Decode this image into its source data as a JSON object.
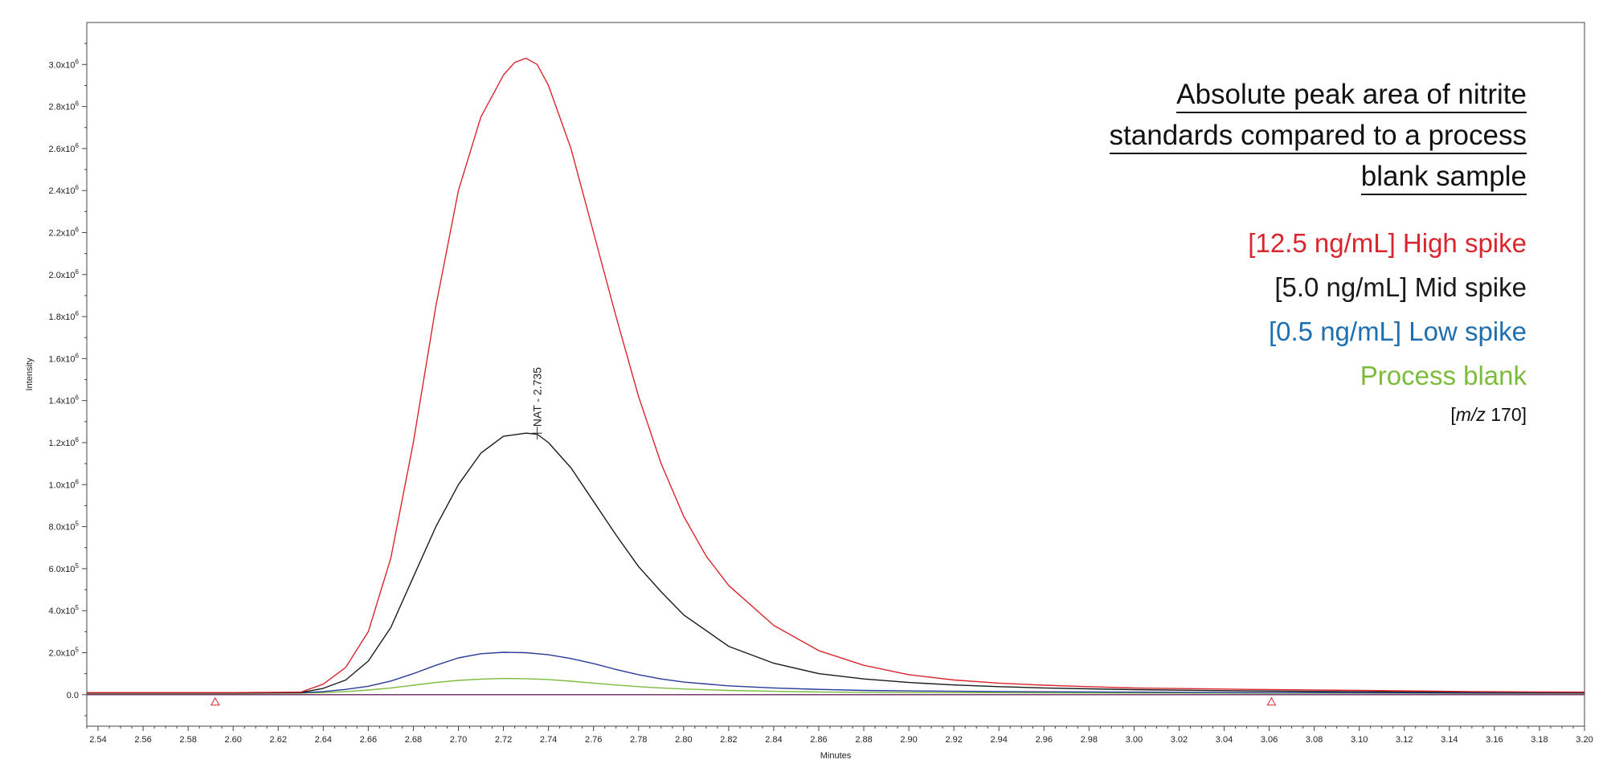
{
  "chart_data": {
    "type": "line",
    "title_lines": [
      "Absolute peak area of nitrite",
      "standards compared to a process",
      "blank sample"
    ],
    "xlabel": "Minutes",
    "ylabel": "Intensity",
    "xlim": [
      2.535,
      3.2
    ],
    "ylim": [
      -150000,
      3200000
    ],
    "x_ticks": [
      "2.54",
      "2.56",
      "2.58",
      "2.60",
      "2.62",
      "2.64",
      "2.66",
      "2.68",
      "2.70",
      "2.72",
      "2.74",
      "2.76",
      "2.78",
      "2.80",
      "2.82",
      "2.84",
      "2.86",
      "2.88",
      "2.90",
      "2.92",
      "2.94",
      "2.96",
      "2.98",
      "3.00",
      "3.02",
      "3.04",
      "3.06",
      "3.08",
      "3.10",
      "3.12",
      "3.14",
      "3.16",
      "3.18",
      "3.20"
    ],
    "y_ticks": [
      {
        "value": 0,
        "mantissa": "0.0",
        "exp": ""
      },
      {
        "value": 200000,
        "mantissa": "2.0x10",
        "exp": "5"
      },
      {
        "value": 400000,
        "mantissa": "4.0x10",
        "exp": "5"
      },
      {
        "value": 600000,
        "mantissa": "6.0x10",
        "exp": "5"
      },
      {
        "value": 800000,
        "mantissa": "8.0x10",
        "exp": "5"
      },
      {
        "value": 1000000,
        "mantissa": "1.0x10",
        "exp": "6"
      },
      {
        "value": 1200000,
        "mantissa": "1.2x10",
        "exp": "6"
      },
      {
        "value": 1400000,
        "mantissa": "1.4x10",
        "exp": "6"
      },
      {
        "value": 1600000,
        "mantissa": "1.6x10",
        "exp": "6"
      },
      {
        "value": 1800000,
        "mantissa": "1.8x10",
        "exp": "6"
      },
      {
        "value": 2000000,
        "mantissa": "2.0x10",
        "exp": "6"
      },
      {
        "value": 2200000,
        "mantissa": "2.2x10",
        "exp": "6"
      },
      {
        "value": 2400000,
        "mantissa": "2.4x10",
        "exp": "6"
      },
      {
        "value": 2600000,
        "mantissa": "2.6x10",
        "exp": "6"
      },
      {
        "value": 2800000,
        "mantissa": "2.8x10",
        "exp": "6"
      },
      {
        "value": 3000000,
        "mantissa": "3.0x10",
        "exp": "6"
      }
    ],
    "series": [
      {
        "name": "[12.5 ng/mL] High spike",
        "color": "#d9262e",
        "x": [
          2.535,
          2.6,
          2.63,
          2.64,
          2.65,
          2.66,
          2.67,
          2.68,
          2.69,
          2.7,
          2.71,
          2.72,
          2.725,
          2.73,
          2.735,
          2.74,
          2.75,
          2.76,
          2.77,
          2.78,
          2.79,
          2.8,
          2.81,
          2.82,
          2.84,
          2.86,
          2.88,
          2.9,
          2.92,
          2.94,
          2.96,
          2.98,
          3.0,
          3.05,
          3.1,
          3.15,
          3.2
        ],
        "y": [
          10000,
          10000,
          12000,
          50000,
          130000,
          300000,
          650000,
          1200000,
          1850000,
          2400000,
          2750000,
          2950000,
          3010000,
          3030000,
          3000000,
          2900000,
          2600000,
          2200000,
          1800000,
          1420000,
          1100000,
          850000,
          660000,
          520000,
          330000,
          210000,
          140000,
          95000,
          70000,
          55000,
          45000,
          38000,
          32000,
          25000,
          20000,
          15000,
          12000
        ]
      },
      {
        "name": "[5.0 ng/mL] Mid spike",
        "color": "#1a1a1a",
        "x": [
          2.535,
          2.6,
          2.63,
          2.64,
          2.65,
          2.66,
          2.67,
          2.68,
          2.69,
          2.7,
          2.71,
          2.72,
          2.73,
          2.735,
          2.74,
          2.75,
          2.76,
          2.77,
          2.78,
          2.79,
          2.8,
          2.82,
          2.84,
          2.86,
          2.88,
          2.9,
          2.92,
          2.94,
          2.96,
          2.98,
          3.0,
          3.05,
          3.1,
          3.15,
          3.2
        ],
        "y": [
          8000,
          8000,
          10000,
          30000,
          70000,
          160000,
          320000,
          560000,
          800000,
          1000000,
          1150000,
          1230000,
          1245000,
          1240000,
          1200000,
          1080000,
          920000,
          760000,
          610000,
          490000,
          380000,
          230000,
          150000,
          100000,
          75000,
          58000,
          46000,
          38000,
          32000,
          28000,
          24000,
          18000,
          14000,
          12000,
          10000
        ]
      },
      {
        "name": "[0.5 ng/mL] Low spike",
        "color": "#2a3a9a",
        "x": [
          2.535,
          2.6,
          2.63,
          2.64,
          2.65,
          2.66,
          2.67,
          2.68,
          2.69,
          2.7,
          2.71,
          2.72,
          2.73,
          2.74,
          2.75,
          2.76,
          2.77,
          2.78,
          2.79,
          2.8,
          2.82,
          2.84,
          2.86,
          2.88,
          2.9,
          2.95,
          3.0,
          3.05,
          3.1,
          3.15,
          3.2
        ],
        "y": [
          8000,
          8000,
          9000,
          15000,
          25000,
          40000,
          65000,
          100000,
          140000,
          175000,
          195000,
          202000,
          200000,
          190000,
          172000,
          148000,
          120000,
          95000,
          75000,
          60000,
          42000,
          32000,
          25000,
          20000,
          18000,
          14000,
          12000,
          10000,
          9000,
          8000,
          8000
        ]
      },
      {
        "name": "Process blank",
        "color": "#7cbc3c",
        "x": [
          2.535,
          2.6,
          2.63,
          2.64,
          2.65,
          2.66,
          2.67,
          2.68,
          2.69,
          2.7,
          2.71,
          2.72,
          2.73,
          2.74,
          2.75,
          2.76,
          2.77,
          2.78,
          2.79,
          2.8,
          2.82,
          2.84,
          2.86,
          2.88,
          2.9,
          2.95,
          3.0,
          3.05,
          3.1,
          3.15,
          3.2
        ],
        "y": [
          6000,
          6000,
          7000,
          10000,
          15000,
          22000,
          32000,
          45000,
          58000,
          68000,
          74000,
          77000,
          76000,
          72000,
          64000,
          55000,
          46000,
          38000,
          32000,
          27000,
          20000,
          16000,
          13000,
          11000,
          10000,
          9000,
          8000,
          7000,
          7000,
          6000,
          6000
        ]
      }
    ],
    "peak_annotation": {
      "label": "NAT - 2.735",
      "x": 2.735,
      "y": 1245000
    },
    "markers": [
      {
        "x": 2.592,
        "y": 0
      },
      {
        "x": 3.061,
        "y": 0
      }
    ],
    "legend_placement": "top-right",
    "ion_label": {
      "prefix": "[",
      "mz": "m/z",
      "value": " 170]"
    }
  }
}
